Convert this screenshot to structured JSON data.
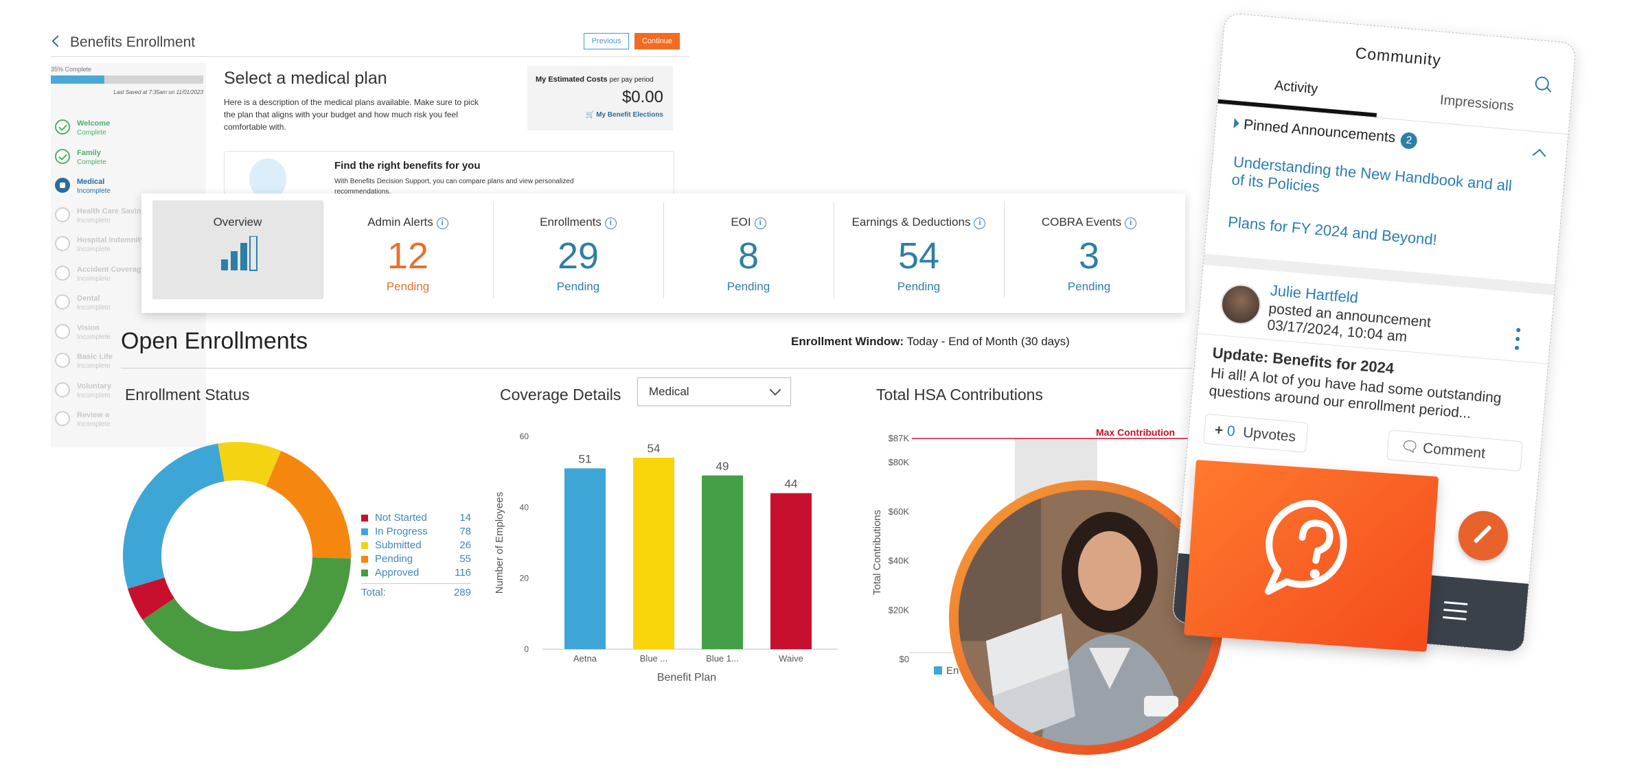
{
  "enrollment": {
    "back_label": "Benefits Enrollment",
    "previous_label": "Previous",
    "continue_label": "Continue",
    "progress_label": "35% Complete",
    "progress_fraction": 0.35,
    "last_saved": "Last Saved at 7:35am on 11/01/2023",
    "steps": [
      {
        "name": "Welcome",
        "status": "Complete",
        "state": "done"
      },
      {
        "name": "Family",
        "status": "Complete",
        "state": "done"
      },
      {
        "name": "Medical",
        "status": "Incomplete",
        "state": "current"
      },
      {
        "name": "Health Care Savings",
        "status": "Incomplete",
        "state": "todo"
      },
      {
        "name": "Hospital Indemnity",
        "status": "Incomplete",
        "state": "todo"
      },
      {
        "name": "Accident Coverage",
        "status": "Incomplete",
        "state": "todo"
      },
      {
        "name": "Dental",
        "status": "Incomplete",
        "state": "todo"
      },
      {
        "name": "Vision",
        "status": "Incomplete",
        "state": "todo"
      },
      {
        "name": "Basic Life",
        "status": "Incomplete",
        "state": "todo"
      },
      {
        "name": "Voluntary",
        "status": "Incomplete",
        "state": "todo"
      },
      {
        "name": "Review a",
        "status": "Incomplete",
        "state": "todo"
      }
    ],
    "heading": "Select a medical plan",
    "description": "Here is a description of the medical plans available. Make sure to pick the plan that aligns with your budget and how much risk you feel comfortable with.",
    "costs_title": "My Estimated Costs",
    "costs_period": "per pay period",
    "costs_value": "$0.00",
    "costs_link": "My Benefit Elections",
    "find_title": "Find the right benefits for you",
    "find_desc": "With Benefits Decision Support, you can compare plans and view personalized recommendations."
  },
  "stats": {
    "overview_label": "Overview",
    "items": [
      {
        "label": "Admin Alerts",
        "value": "12",
        "sub": "Pending",
        "color": "#e8702a"
      },
      {
        "label": "Enrollments",
        "value": "29",
        "sub": "Pending",
        "color": "#2d7fa6"
      },
      {
        "label": "EOI",
        "value": "8",
        "sub": "Pending",
        "color": "#2d7fa6"
      },
      {
        "label": "Earnings & Deductions",
        "value": "54",
        "sub": "Pending",
        "color": "#2d7fa6"
      },
      {
        "label": "COBRA Events",
        "value": "3",
        "sub": "Pending",
        "color": "#2d7fa6"
      }
    ]
  },
  "open_enrollments": {
    "title": "Open Enrollments",
    "window_label": "Enrollment Window:",
    "window_value": "Today - End of Month (30 days)",
    "status_title": "Enrollment Status",
    "coverage_title": "Coverage Details",
    "coverage_select": "Medical",
    "hsa_title": "Total HSA Contributions",
    "total_label": "Total:",
    "total_value": "289"
  },
  "chart_data": [
    {
      "type": "pie",
      "title": "Enrollment Status",
      "donut": true,
      "legend": "right",
      "categories": [
        "Not Started",
        "In Progress",
        "Submitted",
        "Pending",
        "Approved"
      ],
      "values": [
        14,
        78,
        26,
        55,
        116
      ],
      "colors": [
        "#c8102e",
        "#3ea6d6",
        "#f4d312",
        "#f5870f",
        "#4a9b3f"
      ]
    },
    {
      "type": "bar",
      "title": "Coverage Details",
      "categories": [
        "Aetna",
        "Blue ...",
        "Blue 1...",
        "Waive"
      ],
      "values": [
        51,
        54,
        49,
        44
      ],
      "colors": [
        "#3ea6d6",
        "#f9d50b",
        "#44a047",
        "#c8102e"
      ],
      "xlabel": "Benefit Plan",
      "ylabel": "Number of Employees",
      "ylim": [
        0,
        60
      ],
      "yticks": [
        0,
        20,
        40,
        60
      ],
      "grid": false
    },
    {
      "type": "bar",
      "title": "Total HSA Contributions",
      "ylabel": "Total Contributions",
      "yticks": [
        "$0",
        "$20K",
        "$40K",
        "$60K",
        "$80K",
        "$87K"
      ],
      "ylim": [
        0,
        87000
      ],
      "max_line_label": "Max Contribution",
      "max_line_value": 87000,
      "legend_partial": "En"
    }
  ],
  "community": {
    "title": "Community",
    "tabs": [
      "Activity",
      "Impressions"
    ],
    "pinned_label": "Pinned Announcements",
    "pinned_count": "2",
    "links": [
      "Understanding the New Handbook and all of its Policies",
      "Plans for FY 2024 and Beyond!"
    ],
    "author": "Julie Hartfeld",
    "action": "posted an announcement",
    "date": "03/17/2024, 10:04 am",
    "post_title": "Update: Benefits for 2024",
    "post_body": "Hi all! A lot of you have had some outstanding questions around our enrollment period...",
    "upvote_count": "0",
    "upvote_label": "Upvotes",
    "comment_label": "Comment"
  },
  "colors": {
    "accent_orange": "#f36b21",
    "accent_blue": "#2d7fa6",
    "complete_green": "#4caf6a"
  }
}
